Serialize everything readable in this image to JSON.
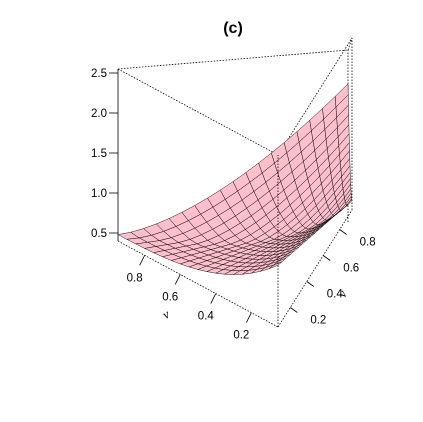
{
  "chart_data": {
    "type": "surface3d",
    "title": "(c)",
    "xlabel": "ν",
    "ylabel": "ν",
    "zlabel": "",
    "x_ticks": [
      "0.2",
      "0.4",
      "0.6",
      "0.8"
    ],
    "y_ticks": [
      "0.2",
      "0.4",
      "0.6",
      "0.8"
    ],
    "z_ticks": [
      "0.5",
      "1.0",
      "1.5",
      "2.0",
      "2.5"
    ],
    "x_range": [
      0.05,
      0.95
    ],
    "y_range": [
      0.05,
      0.95
    ],
    "z_range": [
      0.4,
      2.55
    ],
    "grid": [
      0.05,
      0.1,
      0.15,
      0.2,
      0.25,
      0.3,
      0.35,
      0.4,
      0.45,
      0.5,
      0.55,
      0.6,
      0.65,
      0.7,
      0.75,
      0.8,
      0.85,
      0.9,
      0.95
    ],
    "surface_color": "#ffc0cb",
    "edge_color": "#000000",
    "box_color": "#000000"
  }
}
